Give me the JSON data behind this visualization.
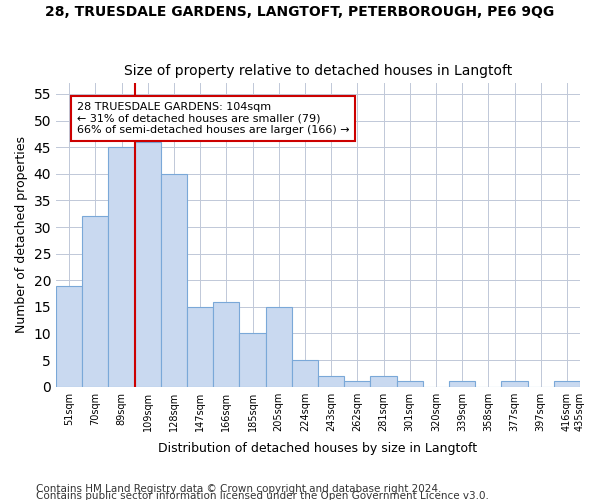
{
  "title": "28, TRUESDALE GARDENS, LANGTOFT, PETERBOROUGH, PE6 9QG",
  "subtitle": "Size of property relative to detached houses in Langtoft",
  "xlabel": "Distribution of detached houses by size in Langtoft",
  "ylabel": "Number of detached properties",
  "bar_values": [
    19,
    32,
    45,
    46,
    40,
    15,
    16,
    10,
    15,
    5,
    2,
    1,
    2,
    1,
    0,
    1,
    0,
    1,
    0,
    1
  ],
  "categories": [
    "51sqm",
    "70sqm",
    "89sqm",
    "109sqm",
    "128sqm",
    "147sqm",
    "166sqm",
    "185sqm",
    "205sqm",
    "224sqm",
    "243sqm",
    "262sqm",
    "281sqm",
    "301sqm",
    "320sqm",
    "339sqm",
    "358sqm",
    "377sqm",
    "397sqm",
    "416sqm"
  ],
  "bar_color": "#c9d9f0",
  "bar_edge_color": "#7aa8d8",
  "red_line_index": 3,
  "red_line_color": "#cc0000",
  "annotation_text": "28 TRUESDALE GARDENS: 104sqm\n← 31% of detached houses are smaller (79)\n66% of semi-detached houses are larger (166) →",
  "annotation_box_color": "#ffffff",
  "annotation_box_edge_color": "#cc0000",
  "ylim": [
    0,
    57
  ],
  "yticks": [
    0,
    5,
    10,
    15,
    20,
    25,
    30,
    35,
    40,
    45,
    50,
    55
  ],
  "footnote1": "Contains HM Land Registry data © Crown copyright and database right 2024.",
  "footnote2": "Contains public sector information licensed under the Open Government Licence v3.0.",
  "title_fontsize": 10,
  "subtitle_fontsize": 10,
  "annotation_fontsize": 8,
  "footnote_fontsize": 7.5,
  "xlabel_fontsize": 9,
  "ylabel_fontsize": 9,
  "extra_tick": "435sqm"
}
